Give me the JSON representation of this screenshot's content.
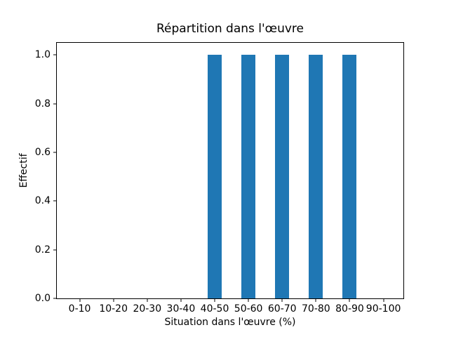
{
  "chart_data": {
    "type": "bar",
    "title": "Répartition dans l'œuvre",
    "xlabel": "Situation dans l'œuvre (%)",
    "ylabel": "Effectif",
    "categories": [
      "0-10",
      "10-20",
      "20-30",
      "30-40",
      "40-50",
      "50-60",
      "60-70",
      "70-80",
      "80-90",
      "90-100"
    ],
    "values": [
      0,
      0,
      0,
      0,
      1,
      1,
      1,
      1,
      1,
      0
    ],
    "ytick_labels": [
      "0.0",
      "0.2",
      "0.4",
      "0.6",
      "0.8",
      "1.0"
    ],
    "ytick_values": [
      0.0,
      0.2,
      0.4,
      0.6,
      0.8,
      1.0
    ],
    "ylim": [
      0,
      1.05
    ],
    "grid": false,
    "legend": false,
    "bar_color": "#1f77b4",
    "axis_color": "#000000",
    "text_color": "#000000",
    "background_color": "#ffffff"
  }
}
